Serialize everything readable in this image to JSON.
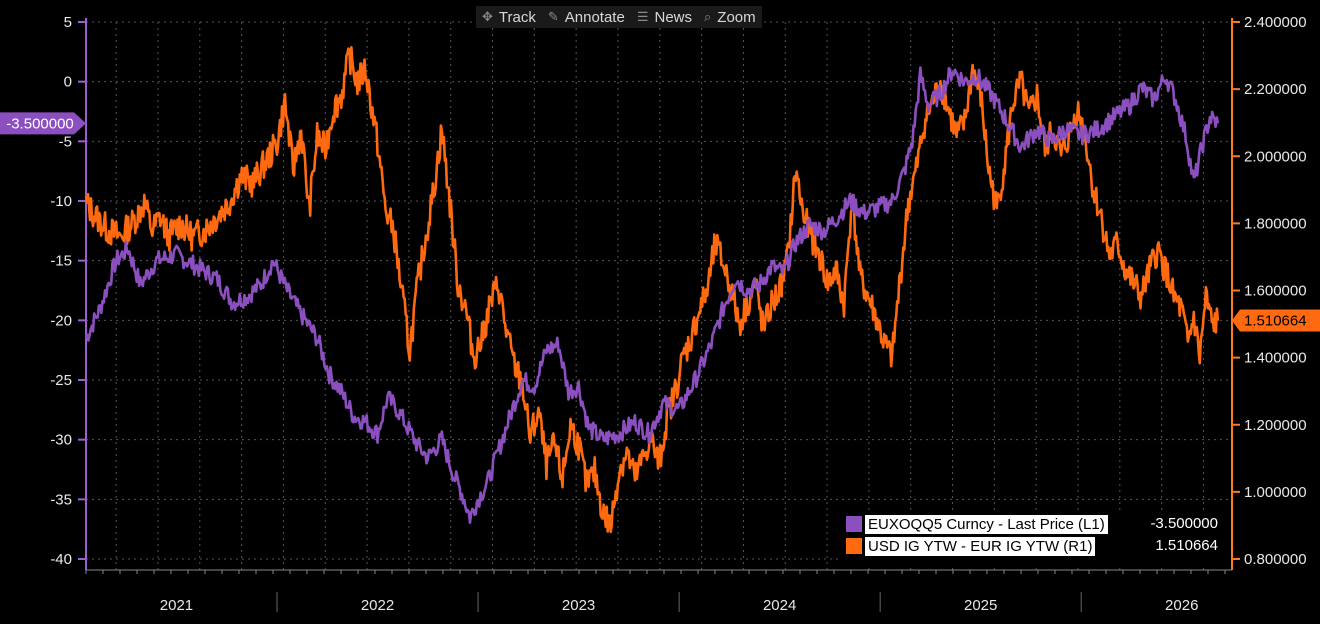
{
  "toolbar": [
    {
      "label": "Track",
      "icon": "crosshair-icon"
    },
    {
      "label": "Annotate",
      "icon": "pencil-icon"
    },
    {
      "label": "News",
      "icon": "news-icon"
    },
    {
      "label": "Zoom",
      "icon": "magnifier-icon"
    }
  ],
  "colors": {
    "purple": "#8b4fc0",
    "orange": "#ff6a10",
    "axis_left": "#9b5fd0",
    "axis_right": "#ff7a1a"
  },
  "chart_data": {
    "type": "line",
    "title": "",
    "left_axis": {
      "min": -40,
      "max": 5,
      "ticks": [
        "5",
        "0",
        "-5",
        "-10",
        "-15",
        "-20",
        "-25",
        "-30",
        "-35",
        "-40"
      ],
      "tick_values": [
        5,
        0,
        -5,
        -10,
        -15,
        -20,
        -25,
        -30,
        -35,
        -40
      ]
    },
    "right_axis": {
      "min": 0.8,
      "max": 2.4,
      "ticks": [
        "2.400000",
        "2.200000",
        "2.000000",
        "1.800000",
        "1.600000",
        "1.400000",
        "1.200000",
        "1.000000",
        "0.800000"
      ],
      "tick_values": [
        2.4,
        2.2,
        2.0,
        1.8,
        1.6,
        1.4,
        1.2,
        1.0,
        0.8
      ]
    },
    "x_range": [
      2020.55,
      2026.25
    ],
    "x_labels": [
      "2021",
      "2022",
      "2023",
      "2024",
      "2025",
      "2026"
    ],
    "x_label_positions": [
      2021.0,
      2022.0,
      2023.0,
      2024.0,
      2025.0,
      2026.0
    ],
    "year_boundaries": [
      2021.5,
      2022.5,
      2023.5,
      2024.5,
      2025.5
    ],
    "grid": true,
    "legend_position": "bottom-right",
    "series": [
      {
        "name": "EUXOQQ5 Curncy - Last Price (L1)",
        "axis": "left",
        "last_value_label": "-3.500000",
        "last_value": -3.5,
        "points": [
          [
            2020.55,
            -21.5
          ],
          [
            2020.62,
            -19
          ],
          [
            2020.7,
            -15
          ],
          [
            2020.76,
            -14
          ],
          [
            2020.82,
            -17
          ],
          [
            2020.9,
            -15
          ],
          [
            2021.0,
            -14.5
          ],
          [
            2021.1,
            -15.5
          ],
          [
            2021.2,
            -16.5
          ],
          [
            2021.28,
            -18.5
          ],
          [
            2021.35,
            -18
          ],
          [
            2021.42,
            -17
          ],
          [
            2021.48,
            -15
          ],
          [
            2021.55,
            -17.5
          ],
          [
            2021.62,
            -19.5
          ],
          [
            2021.7,
            -21.5
          ],
          [
            2021.76,
            -24.5
          ],
          [
            2021.82,
            -26
          ],
          [
            2021.88,
            -28
          ],
          [
            2021.94,
            -28.5
          ],
          [
            2022.0,
            -29.5
          ],
          [
            2022.05,
            -26.5
          ],
          [
            2022.1,
            -27.5
          ],
          [
            2022.15,
            -29
          ],
          [
            2022.2,
            -30.5
          ],
          [
            2022.25,
            -31.5
          ],
          [
            2022.32,
            -30
          ],
          [
            2022.38,
            -33
          ],
          [
            2022.42,
            -34.5
          ],
          [
            2022.46,
            -36.5
          ],
          [
            2022.5,
            -35
          ],
          [
            2022.55,
            -33.5
          ],
          [
            2022.6,
            -31
          ],
          [
            2022.66,
            -28
          ],
          [
            2022.72,
            -25
          ],
          [
            2022.78,
            -25.5
          ],
          [
            2022.84,
            -22.5
          ],
          [
            2022.9,
            -22
          ],
          [
            2022.95,
            -26
          ],
          [
            2023.0,
            -25.5
          ],
          [
            2023.05,
            -29
          ],
          [
            2023.12,
            -30
          ],
          [
            2023.2,
            -29.5
          ],
          [
            2023.28,
            -28.5
          ],
          [
            2023.35,
            -29.5
          ],
          [
            2023.42,
            -27
          ],
          [
            2023.5,
            -27.5
          ],
          [
            2023.58,
            -25
          ],
          [
            2023.66,
            -22
          ],
          [
            2023.72,
            -19
          ],
          [
            2023.78,
            -16.5
          ],
          [
            2023.84,
            -17.5
          ],
          [
            2023.9,
            -17
          ],
          [
            2023.96,
            -15.5
          ],
          [
            2024.02,
            -16
          ],
          [
            2024.08,
            -13.5
          ],
          [
            2024.15,
            -12
          ],
          [
            2024.22,
            -12.5
          ],
          [
            2024.28,
            -11.5
          ],
          [
            2024.35,
            -10
          ],
          [
            2024.42,
            -11
          ],
          [
            2024.5,
            -10.5
          ],
          [
            2024.56,
            -10
          ],
          [
            2024.62,
            -7.5
          ],
          [
            2024.66,
            -5
          ],
          [
            2024.7,
            0.5
          ],
          [
            2024.74,
            -2
          ],
          [
            2024.8,
            -1
          ],
          [
            2024.86,
            1
          ],
          [
            2024.92,
            0
          ],
          [
            2024.98,
            0.5
          ],
          [
            2025.05,
            -1
          ],
          [
            2025.12,
            -3
          ],
          [
            2025.2,
            -5.5
          ],
          [
            2025.28,
            -4
          ],
          [
            2025.35,
            -5
          ],
          [
            2025.42,
            -4
          ],
          [
            2025.5,
            -4.5
          ],
          [
            2025.58,
            -4
          ],
          [
            2025.66,
            -3
          ],
          [
            2025.74,
            -2
          ],
          [
            2025.8,
            -0.5
          ],
          [
            2025.86,
            -1.5
          ],
          [
            2025.92,
            0.5
          ],
          [
            2025.97,
            -1.5
          ],
          [
            2026.02,
            -4.5
          ],
          [
            2026.06,
            -8.5
          ],
          [
            2026.1,
            -5.5
          ],
          [
            2026.14,
            -3
          ],
          [
            2026.18,
            -3.5
          ]
        ]
      },
      {
        "name": "USD IG YTW - EUR IG YTW (R1)",
        "axis": "right",
        "last_value_label": "1.510664",
        "last_value": 1.510664,
        "points": [
          [
            2020.55,
            1.86
          ],
          [
            2020.6,
            1.82
          ],
          [
            2020.66,
            1.78
          ],
          [
            2020.72,
            1.76
          ],
          [
            2020.78,
            1.8
          ],
          [
            2020.84,
            1.86
          ],
          [
            2020.88,
            1.78
          ],
          [
            2020.92,
            1.82
          ],
          [
            2020.96,
            1.76
          ],
          [
            2021.02,
            1.8
          ],
          [
            2021.08,
            1.76
          ],
          [
            2021.14,
            1.78
          ],
          [
            2021.2,
            1.82
          ],
          [
            2021.26,
            1.86
          ],
          [
            2021.32,
            1.94
          ],
          [
            2021.38,
            1.92
          ],
          [
            2021.44,
            1.98
          ],
          [
            2021.5,
            2.04
          ],
          [
            2021.54,
            2.16
          ],
          [
            2021.58,
            1.96
          ],
          [
            2021.62,
            2.08
          ],
          [
            2021.66,
            1.84
          ],
          [
            2021.7,
            2.06
          ],
          [
            2021.74,
            2.02
          ],
          [
            2021.78,
            2.14
          ],
          [
            2021.82,
            2.18
          ],
          [
            2021.86,
            2.3
          ],
          [
            2021.9,
            2.22
          ],
          [
            2021.94,
            2.26
          ],
          [
            2022.0,
            2.04
          ],
          [
            2022.04,
            1.84
          ],
          [
            2022.08,
            1.78
          ],
          [
            2022.12,
            1.6
          ],
          [
            2022.16,
            1.42
          ],
          [
            2022.2,
            1.62
          ],
          [
            2022.24,
            1.76
          ],
          [
            2022.28,
            1.9
          ],
          [
            2022.32,
            2.08
          ],
          [
            2022.36,
            1.86
          ],
          [
            2022.4,
            1.62
          ],
          [
            2022.44,
            1.54
          ],
          [
            2022.48,
            1.4
          ],
          [
            2022.52,
            1.46
          ],
          [
            2022.56,
            1.56
          ],
          [
            2022.6,
            1.62
          ],
          [
            2022.64,
            1.48
          ],
          [
            2022.68,
            1.38
          ],
          [
            2022.72,
            1.32
          ],
          [
            2022.76,
            1.16
          ],
          [
            2022.8,
            1.24
          ],
          [
            2022.84,
            1.08
          ],
          [
            2022.88,
            1.14
          ],
          [
            2022.92,
            1.04
          ],
          [
            2022.96,
            1.2
          ],
          [
            2023.0,
            1.14
          ],
          [
            2023.04,
            1.02
          ],
          [
            2023.08,
            1.06
          ],
          [
            2023.12,
            0.94
          ],
          [
            2023.16,
            0.9
          ],
          [
            2023.2,
            1.06
          ],
          [
            2023.24,
            1.12
          ],
          [
            2023.28,
            1.04
          ],
          [
            2023.32,
            1.1
          ],
          [
            2023.36,
            1.16
          ],
          [
            2023.4,
            1.08
          ],
          [
            2023.44,
            1.22
          ],
          [
            2023.48,
            1.3
          ],
          [
            2023.52,
            1.4
          ],
          [
            2023.56,
            1.46
          ],
          [
            2023.6,
            1.54
          ],
          [
            2023.64,
            1.6
          ],
          [
            2023.68,
            1.74
          ],
          [
            2023.72,
            1.68
          ],
          [
            2023.76,
            1.6
          ],
          [
            2023.8,
            1.5
          ],
          [
            2023.84,
            1.56
          ],
          [
            2023.88,
            1.62
          ],
          [
            2023.92,
            1.48
          ],
          [
            2023.96,
            1.56
          ],
          [
            2024.0,
            1.6
          ],
          [
            2024.04,
            1.7
          ],
          [
            2024.08,
            1.96
          ],
          [
            2024.12,
            1.82
          ],
          [
            2024.16,
            1.76
          ],
          [
            2024.2,
            1.7
          ],
          [
            2024.24,
            1.62
          ],
          [
            2024.28,
            1.66
          ],
          [
            2024.32,
            1.56
          ],
          [
            2024.36,
            1.88
          ],
          [
            2024.4,
            1.64
          ],
          [
            2024.44,
            1.58
          ],
          [
            2024.48,
            1.52
          ],
          [
            2024.52,
            1.44
          ],
          [
            2024.56,
            1.4
          ],
          [
            2024.6,
            1.64
          ],
          [
            2024.64,
            1.86
          ],
          [
            2024.68,
            1.96
          ],
          [
            2024.72,
            2.1
          ],
          [
            2024.76,
            2.16
          ],
          [
            2024.8,
            2.22
          ],
          [
            2024.84,
            2.14
          ],
          [
            2024.88,
            2.06
          ],
          [
            2024.92,
            2.1
          ],
          [
            2024.96,
            2.26
          ],
          [
            2025.0,
            2.18
          ],
          [
            2025.04,
            1.96
          ],
          [
            2025.08,
            1.84
          ],
          [
            2025.12,
            1.98
          ],
          [
            2025.16,
            2.16
          ],
          [
            2025.2,
            2.22
          ],
          [
            2025.24,
            2.12
          ],
          [
            2025.28,
            2.18
          ],
          [
            2025.32,
            2.02
          ],
          [
            2025.36,
            2.08
          ],
          [
            2025.4,
            2.0
          ],
          [
            2025.44,
            2.06
          ],
          [
            2025.48,
            2.14
          ],
          [
            2025.52,
            2.06
          ],
          [
            2025.56,
            1.9
          ],
          [
            2025.6,
            1.82
          ],
          [
            2025.64,
            1.7
          ],
          [
            2025.68,
            1.74
          ],
          [
            2025.72,
            1.66
          ],
          [
            2025.76,
            1.62
          ],
          [
            2025.8,
            1.58
          ],
          [
            2025.84,
            1.66
          ],
          [
            2025.88,
            1.72
          ],
          [
            2025.92,
            1.66
          ],
          [
            2025.96,
            1.58
          ],
          [
            2026.0,
            1.54
          ],
          [
            2026.03,
            1.44
          ],
          [
            2026.06,
            1.52
          ],
          [
            2026.09,
            1.4
          ],
          [
            2026.12,
            1.58
          ],
          [
            2026.15,
            1.5
          ],
          [
            2026.18,
            1.51
          ]
        ]
      }
    ]
  }
}
